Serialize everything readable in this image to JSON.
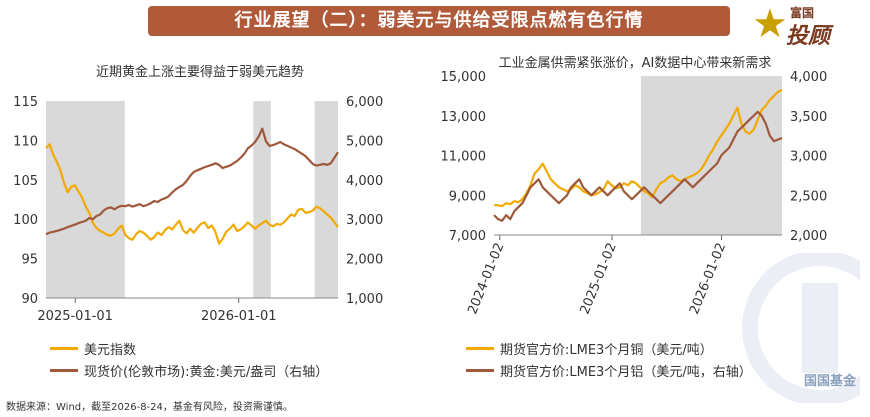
{
  "banner": {
    "title": "行业展望（二）：弱美元与供给受限点燃有色行情"
  },
  "logo": {
    "line1": "富国",
    "line2": "投顾"
  },
  "watermark": {
    "text": "国国基金"
  },
  "footer": {
    "source": "数据来源：Wind，截至2026-8-24，基金有风险，投资需谨慎。"
  },
  "chart_data": [
    {
      "type": "line",
      "title": "近期黄金上涨主要得益于弱美元趋势",
      "x_ticks": [
        "2025-01-01",
        "2026-01-01"
      ],
      "y_left": {
        "ticks": [
          "115",
          "110",
          "105",
          "100",
          "95",
          "90"
        ],
        "lim": [
          90,
          115
        ]
      },
      "y_right": {
        "ticks": [
          "6,000",
          "5,000",
          "4,000",
          "3,000",
          "2,000",
          "1,000"
        ],
        "lim": [
          1000,
          6000
        ]
      },
      "shaded": [
        [
          0.0,
          0.27
        ],
        [
          0.71,
          0.77
        ],
        [
          0.92,
          1.0
        ]
      ],
      "series": [
        {
          "name": "美元指数",
          "axis": "left",
          "color": "#f2a900",
          "values": [
            109,
            109.5,
            108.2,
            107.3,
            106.2,
            104.6,
            103.4,
            104.1,
            104.3,
            103.5,
            102.8,
            101.6,
            100.8,
            99.5,
            98.9,
            98.5,
            98.3,
            98.0,
            97.9,
            98.2,
            98.8,
            99.2,
            98.0,
            97.6,
            97.4,
            98.1,
            98.5,
            98.3,
            97.9,
            97.4,
            97.7,
            98.3,
            98.0,
            98.6,
            99.0,
            98.7,
            99.3,
            99.8,
            98.6,
            98.2,
            98.8,
            98.3,
            98.9,
            99.4,
            99.6,
            98.9,
            99.2,
            98.4,
            96.9,
            97.5,
            98.4,
            98.8,
            99.3,
            98.5,
            98.7,
            99.1,
            99.6,
            99.2,
            98.8,
            99.2,
            99.5,
            99.8,
            99.3,
            99.1,
            99.4,
            99.3,
            99.6,
            100.1,
            100.6,
            100.4,
            101.2,
            101.3,
            100.8,
            100.9,
            101.1,
            101.6,
            101.4,
            101.0,
            100.6,
            100.2,
            99.6,
            99.0
          ]
        },
        {
          "name": "现货价(伦敦市场):黄金:美元/盎司（右轴）",
          "axis": "right",
          "color": "#a0583a",
          "values": [
            2620,
            2660,
            2680,
            2700,
            2730,
            2760,
            2800,
            2830,
            2860,
            2900,
            2930,
            2960,
            3030,
            3000,
            3080,
            3120,
            3220,
            3280,
            3300,
            3250,
            3310,
            3340,
            3330,
            3360,
            3320,
            3350,
            3380,
            3330,
            3360,
            3400,
            3460,
            3440,
            3500,
            3530,
            3580,
            3680,
            3760,
            3820,
            3870,
            3970,
            4100,
            4200,
            4240,
            4280,
            4320,
            4350,
            4380,
            4420,
            4380,
            4300,
            4330,
            4360,
            4420,
            4480,
            4560,
            4660,
            4800,
            4870,
            4960,
            5100,
            5300,
            4980,
            4860,
            4880,
            4920,
            4960,
            4900,
            4860,
            4820,
            4780,
            4720,
            4660,
            4600,
            4500,
            4400,
            4360,
            4380,
            4400,
            4380,
            4420,
            4560,
            4700
          ]
        }
      ]
    },
    {
      "type": "line",
      "title": "工业金属供需紧张涨价，AI数据中心带来新需求",
      "x_ticks": [
        "2024-01-02",
        "2025-01-02",
        "2026-01-02"
      ],
      "y_left": {
        "ticks": [
          "15,000",
          "13,000",
          "11,000",
          "9,000",
          "7,000"
        ],
        "lim": [
          7000,
          15000
        ]
      },
      "y_right": {
        "ticks": [
          "4,000",
          "3,500",
          "3,000",
          "2,500",
          "2,000"
        ],
        "lim": [
          2000,
          4000
        ]
      },
      "shaded": [
        [
          0.51,
          1.0
        ]
      ],
      "series": [
        {
          "name": "期货官方价:LME3个月铜（美元/吨）",
          "axis": "left",
          "color": "#f2a900",
          "values": [
            8500,
            8500,
            8450,
            8600,
            8550,
            8700,
            8650,
            8800,
            9100,
            9500,
            10100,
            10300,
            10600,
            10200,
            9800,
            9600,
            9400,
            9300,
            9200,
            9300,
            9500,
            9400,
            9200,
            9100,
            9000,
            9050,
            9150,
            9300,
            9700,
            9500,
            9350,
            9400,
            9600,
            9500,
            9700,
            9600,
            9400,
            9200,
            9100,
            8900,
            9300,
            9600,
            9700,
            9900,
            10000,
            9800,
            9700,
            9800,
            9900,
            10000,
            10100,
            10300,
            10600,
            11000,
            11300,
            11700,
            12000,
            12300,
            12600,
            13000,
            13400,
            12600,
            12200,
            12100,
            12300,
            12800,
            13300,
            13500,
            13800,
            14000,
            14200,
            14300
          ]
        },
        {
          "name": "期货官方价:LME3个月铝（美元/吨，右轴）",
          "axis": "right",
          "color": "#a0583a",
          "values": [
            2250,
            2200,
            2180,
            2250,
            2200,
            2300,
            2350,
            2400,
            2500,
            2600,
            2650,
            2700,
            2600,
            2550,
            2500,
            2450,
            2400,
            2450,
            2500,
            2600,
            2650,
            2700,
            2600,
            2550,
            2500,
            2550,
            2600,
            2550,
            2500,
            2550,
            2600,
            2650,
            2550,
            2500,
            2450,
            2500,
            2550,
            2600,
            2550,
            2500,
            2450,
            2400,
            2450,
            2500,
            2550,
            2600,
            2650,
            2700,
            2650,
            2600,
            2650,
            2700,
            2750,
            2800,
            2850,
            2900,
            3000,
            3050,
            3100,
            3200,
            3300,
            3350,
            3400,
            3450,
            3500,
            3550,
            3500,
            3400,
            3250,
            3180,
            3200,
            3220
          ]
        }
      ]
    }
  ]
}
